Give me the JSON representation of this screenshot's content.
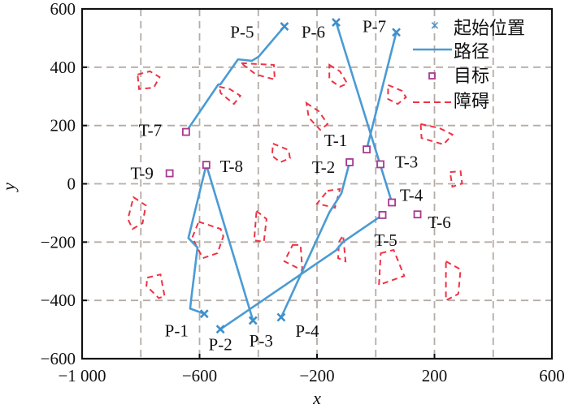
{
  "chart_data": {
    "type": "scatter",
    "title": "",
    "xlabel": "x",
    "ylabel": "y",
    "xlim": [
      -1000,
      600
    ],
    "ylim": [
      -600,
      600
    ],
    "grid": true,
    "legend_placement": "top-right",
    "x_ticks": [
      -1000,
      -600,
      -200,
      200,
      600
    ],
    "x_tick_labels": [
      "−1 000",
      "−600",
      "−200",
      "200",
      "600"
    ],
    "y_ticks": [
      600,
      400,
      200,
      0,
      -200,
      -400,
      -600
    ],
    "y_tick_labels": [
      "600",
      "400",
      "200",
      "0",
      "−200",
      "−400",
      "−600"
    ],
    "legend": {
      "start": "起始位置",
      "path": "路径",
      "target": "目标",
      "obstacle": "障碍"
    },
    "colors": {
      "start": "#3d8fcc",
      "path": "#4a9bd4",
      "target": "#a8398f",
      "obstacle": "#ee3344",
      "grid": "#b5aca6"
    },
    "starts": [
      {
        "label": "P-1",
        "x": -584,
        "y": -446
      },
      {
        "label": "P-2",
        "x": -529,
        "y": -499
      },
      {
        "label": "P-3",
        "x": -418,
        "y": -469
      },
      {
        "label": "P-4",
        "x": -322,
        "y": -458
      },
      {
        "label": "P-5",
        "x": -311,
        "y": 540
      },
      {
        "label": "P-6",
        "x": -135,
        "y": 554
      },
      {
        "label": "P-7",
        "x": 70,
        "y": 520
      }
    ],
    "targets": [
      {
        "label": "T-1",
        "x": -31,
        "y": 118
      },
      {
        "label": "T-2",
        "x": -89,
        "y": 74
      },
      {
        "label": "T-3",
        "x": 16,
        "y": 67
      },
      {
        "label": "T-4",
        "x": 55,
        "y": -64
      },
      {
        "label": "T-5",
        "x": 23,
        "y": -107
      },
      {
        "label": "T-6",
        "x": 142,
        "y": -105
      },
      {
        "label": "T-7",
        "x": -646,
        "y": 178
      },
      {
        "label": "T-8",
        "x": -577,
        "y": 65
      },
      {
        "label": "T-9",
        "x": -702,
        "y": 36
      }
    ],
    "paths": [
      [
        [
          -584,
          -446
        ],
        [
          -632,
          -428
        ],
        [
          -629,
          -400
        ],
        [
          -607,
          -219
        ],
        [
          -638,
          -186
        ],
        [
          -577,
          65
        ]
      ],
      [
        [
          -577,
          65
        ],
        [
          -418,
          -469
        ]
      ],
      [
        [
          -529,
          -499
        ],
        [
          -135,
          -228
        ],
        [
          -112,
          -200
        ],
        [
          23,
          -107
        ]
      ],
      [
        [
          -322,
          -458
        ],
        [
          -158,
          -98
        ],
        [
          -117,
          -33
        ],
        [
          -89,
          74
        ]
      ],
      [
        [
          -646,
          178
        ],
        [
          -536,
          341
        ],
        [
          -529,
          341
        ],
        [
          -469,
          427
        ],
        [
          -422,
          422
        ],
        [
          -399,
          436
        ],
        [
          -311,
          540
        ]
      ],
      [
        [
          -135,
          554
        ],
        [
          55,
          -64
        ]
      ],
      [
        [
          70,
          520
        ],
        [
          -31,
          118
        ]
      ]
    ],
    "obstacles": [
      [
        [
          -811,
          375
        ],
        [
          -769,
          386
        ],
        [
          -736,
          366
        ],
        [
          -756,
          330
        ],
        [
          -806,
          325
        ]
      ],
      [
        [
          -458,
          414
        ],
        [
          -347,
          408
        ],
        [
          -344,
          358
        ],
        [
          -408,
          375
        ]
      ],
      [
        [
          -533,
          333
        ],
        [
          -497,
          325
        ],
        [
          -461,
          302
        ],
        [
          -483,
          274
        ],
        [
          -528,
          311
        ]
      ],
      [
        [
          -236,
          277
        ],
        [
          -194,
          249
        ],
        [
          -164,
          205
        ],
        [
          -189,
          185
        ],
        [
          -228,
          227
        ]
      ],
      [
        [
          -158,
          408
        ],
        [
          -122,
          386
        ],
        [
          -97,
          344
        ],
        [
          -122,
          333
        ],
        [
          -158,
          358
        ]
      ],
      [
        [
          42,
          339
        ],
        [
          89,
          319
        ],
        [
          103,
          297
        ],
        [
          75,
          274
        ],
        [
          42,
          291
        ]
      ],
      [
        [
          -350,
          138
        ],
        [
          -297,
          116
        ],
        [
          -292,
          88
        ],
        [
          -325,
          74
        ],
        [
          -353,
          96
        ]
      ],
      [
        [
          153,
          205
        ],
        [
          217,
          191
        ],
        [
          261,
          169
        ],
        [
          231,
          135
        ],
        [
          156,
          157
        ]
      ],
      [
        [
          253,
          40
        ],
        [
          289,
          43
        ],
        [
          294,
          1
        ],
        [
          261,
          -10
        ]
      ],
      [
        [
          -825,
          -46
        ],
        [
          -783,
          -74
        ],
        [
          -794,
          -135
        ],
        [
          -828,
          -155
        ],
        [
          -844,
          -121
        ]
      ],
      [
        [
          -603,
          -130
        ],
        [
          -528,
          -155
        ],
        [
          -519,
          -180
        ],
        [
          -539,
          -238
        ],
        [
          -589,
          -255
        ],
        [
          -625,
          -185
        ]
      ],
      [
        [
          -406,
          -93
        ],
        [
          -372,
          -121
        ],
        [
          -381,
          -199
        ],
        [
          -414,
          -194
        ]
      ],
      [
        [
          -283,
          -210
        ],
        [
          -256,
          -210
        ],
        [
          -250,
          -297
        ],
        [
          -311,
          -266
        ]
      ],
      [
        [
          -164,
          -24
        ],
        [
          -122,
          -18
        ],
        [
          -139,
          -82
        ],
        [
          -200,
          -68
        ]
      ],
      [
        [
          -125,
          -199
        ],
        [
          -111,
          -177
        ],
        [
          -103,
          -266
        ],
        [
          -128,
          -255
        ]
      ],
      [
        [
          -778,
          -322
        ],
        [
          -733,
          -311
        ],
        [
          -719,
          -386
        ],
        [
          -739,
          -392
        ],
        [
          -781,
          -350
        ]
      ],
      [
        [
          17,
          -238
        ],
        [
          61,
          -227
        ],
        [
          97,
          -316
        ],
        [
          11,
          -347
        ]
      ],
      [
        [
          239,
          -266
        ],
        [
          289,
          -294
        ],
        [
          281,
          -378
        ],
        [
          239,
          -400
        ],
        [
          239,
          -302
        ]
      ]
    ]
  }
}
